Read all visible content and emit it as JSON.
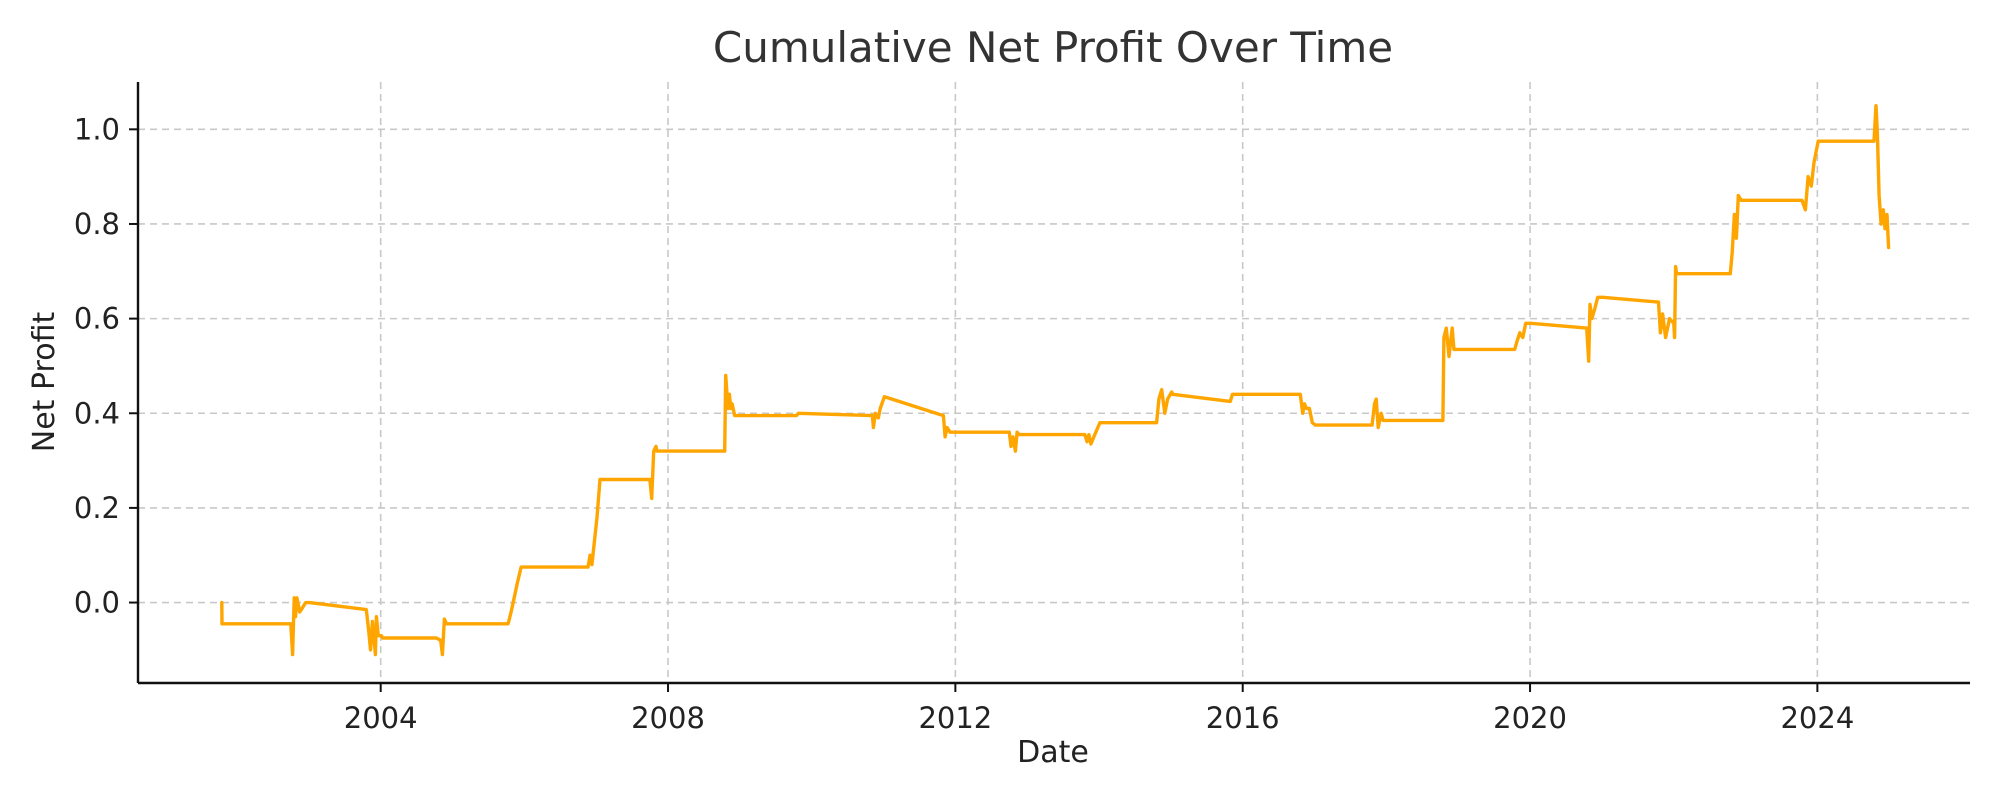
{
  "chart_data": {
    "type": "line",
    "title": "Cumulative Net Profit Over Time",
    "xlabel": "Date",
    "ylabel": "Net Profit",
    "xlim": [
      "2000-08-15",
      "2026-02-15"
    ],
    "ylim": [
      -0.17,
      1.1
    ],
    "x_ticks": [
      "2004",
      "2008",
      "2012",
      "2016",
      "2020",
      "2024"
    ],
    "y_ticks": [
      "0.0",
      "0.2",
      "0.4",
      "0.6",
      "0.8",
      "1.0"
    ],
    "grid": true,
    "colors": {
      "series": "#FFA500",
      "axis": "#111111",
      "grid": "#C8C8C8"
    },
    "series": [
      {
        "x": [
          "2001-10-15",
          "2001-10-16",
          "2002-10-01",
          "2002-10-10",
          "2002-10-18",
          "2002-10-25",
          "2002-11-01",
          "2002-11-15",
          "2002-12-01",
          "2002-12-15",
          "2003-01-05",
          "2003-10-20",
          "2003-11-01",
          "2003-11-10",
          "2003-11-20",
          "2003-12-05",
          "2003-12-10",
          "2003-12-20",
          "2004-01-05",
          "2004-01-10",
          "2004-10-10",
          "2004-11-01",
          "2004-11-10",
          "2004-11-20",
          "2004-12-01",
          "2004-12-15",
          "2005-10-10",
          "2005-10-25",
          "2005-11-10",
          "2005-11-25",
          "2005-12-15",
          "2006-01-05",
          "2006-11-20",
          "2006-12-01",
          "2006-12-10",
          "2007-01-05",
          "2007-01-20",
          "2007-02-05",
          "2007-02-10",
          "2007-10-01",
          "2007-10-10",
          "2007-10-20",
          "2007-11-01",
          "2007-11-05",
          "2008-10-15",
          "2008-10-20",
          "2008-11-01",
          "2008-11-08",
          "2008-11-15",
          "2008-11-22",
          "2008-12-05",
          "2009-01-05",
          "2009-10-15",
          "2009-10-25",
          "2010-11-05",
          "2010-11-10",
          "2010-11-20",
          "2010-12-05",
          "2010-12-15",
          "2011-01-05",
          "2011-11-01",
          "2011-11-10",
          "2011-11-20",
          "2011-12-05",
          "2012-10-01",
          "2012-10-10",
          "2012-10-20",
          "2012-11-01",
          "2012-11-10",
          "2012-11-20",
          "2012-12-01",
          "2012-12-10",
          "2013-10-20",
          "2013-11-01",
          "2013-11-10",
          "2013-11-20",
          "2013-12-10",
          "2014-01-05",
          "2014-10-20",
          "2014-11-01",
          "2014-11-15",
          "2014-12-01",
          "2014-12-15",
          "2015-01-05",
          "2015-01-10",
          "2015-10-30",
          "2015-11-10",
          "2016-10-20",
          "2016-11-01",
          "2016-11-10",
          "2016-11-20",
          "2016-12-05",
          "2016-12-20",
          "2017-01-05",
          "2017-10-20",
          "2017-11-01",
          "2017-11-10",
          "2017-11-20",
          "2017-12-05",
          "2017-12-15",
          "2018-01-05",
          "2018-10-15",
          "2018-10-20",
          "2018-11-01",
          "2018-11-15",
          "2018-12-01",
          "2018-12-10",
          "2019-01-05",
          "2019-10-15",
          "2019-10-25",
          "2019-11-10",
          "2019-11-25",
          "2019-12-10",
          "2020-01-05",
          "2020-10-15",
          "2020-10-25",
          "2020-11-01",
          "2020-11-10",
          "2020-11-25",
          "2020-12-10",
          "2021-01-05",
          "2021-10-15",
          "2021-10-25",
          "2021-11-05",
          "2021-11-20",
          "2021-12-10",
          "2022-01-01",
          "2022-01-05",
          "2022-01-10",
          "2022-01-15",
          "2022-10-15",
          "2022-10-25",
          "2022-11-05",
          "2022-11-15",
          "2022-11-25",
          "2022-12-10",
          "2023-01-05",
          "2023-10-15",
          "2023-11-01",
          "2023-11-15",
          "2023-12-01",
          "2023-12-15",
          "2024-01-05",
          "2024-10-15",
          "2024-10-25",
          "2024-11-01",
          "2024-11-10",
          "2024-11-20",
          "2024-12-01",
          "2024-12-10",
          "2024-12-20",
          "2024-12-28"
        ],
        "values": [
          0.0,
          -0.045,
          -0.045,
          -0.11,
          0.01,
          -0.03,
          0.01,
          -0.02,
          -0.01,
          0.0,
          0.0,
          -0.015,
          -0.06,
          -0.1,
          -0.04,
          -0.11,
          -0.03,
          -0.07,
          -0.07,
          -0.075,
          -0.075,
          -0.08,
          -0.11,
          -0.035,
          -0.045,
          -0.045,
          -0.045,
          -0.02,
          0.01,
          0.04,
          0.075,
          0.075,
          0.075,
          0.1,
          0.08,
          0.18,
          0.26,
          0.26,
          0.26,
          0.26,
          0.22,
          0.32,
          0.33,
          0.32,
          0.32,
          0.48,
          0.41,
          0.44,
          0.41,
          0.42,
          0.395,
          0.395,
          0.395,
          0.4,
          0.395,
          0.37,
          0.4,
          0.39,
          0.41,
          0.435,
          0.395,
          0.35,
          0.37,
          0.36,
          0.36,
          0.33,
          0.35,
          0.32,
          0.36,
          0.355,
          0.355,
          0.355,
          0.355,
          0.34,
          0.355,
          0.335,
          0.355,
          0.38,
          0.38,
          0.43,
          0.45,
          0.4,
          0.43,
          0.445,
          0.44,
          0.425,
          0.44,
          0.44,
          0.4,
          0.42,
          0.41,
          0.41,
          0.38,
          0.375,
          0.375,
          0.42,
          0.43,
          0.37,
          0.4,
          0.385,
          0.385,
          0.385,
          0.56,
          0.58,
          0.52,
          0.58,
          0.535,
          0.535,
          0.535,
          0.55,
          0.57,
          0.56,
          0.59,
          0.59,
          0.58,
          0.51,
          0.63,
          0.6,
          0.62,
          0.645,
          0.645,
          0.635,
          0.57,
          0.61,
          0.56,
          0.6,
          0.59,
          0.56,
          0.71,
          0.695,
          0.695,
          0.74,
          0.82,
          0.77,
          0.86,
          0.85,
          0.85,
          0.85,
          0.83,
          0.9,
          0.88,
          0.93,
          0.975,
          0.975,
          1.05,
          0.99,
          0.86,
          0.8,
          0.83,
          0.79,
          0.82,
          0.75
        ]
      }
    ]
  }
}
